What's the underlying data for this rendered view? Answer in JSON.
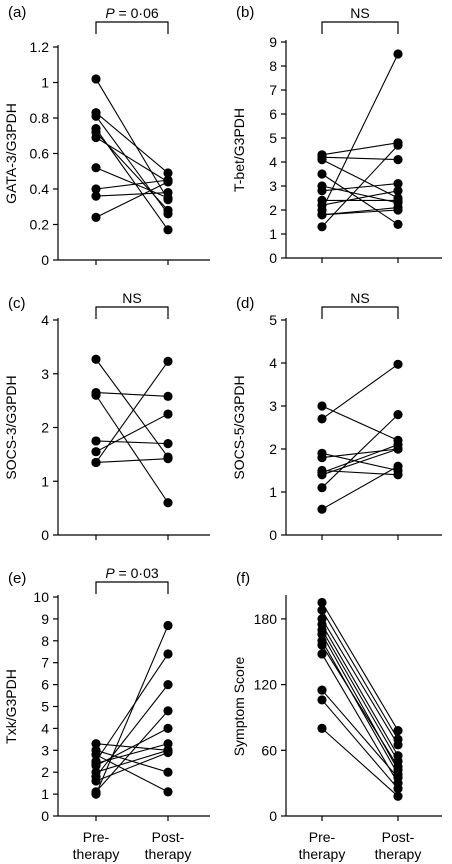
{
  "chart_data": [
    {
      "id": "a",
      "panel_label": "(a)",
      "type": "scatter",
      "paired": true,
      "title": "",
      "significance": "P = 0·06",
      "sig_style": "italic-p",
      "xlabel": "",
      "ylabel": "GATA-3/G3PDH",
      "ylim": [
        0,
        1.2
      ],
      "yticks": [
        "0",
        "0.2",
        "0.4",
        "0.6",
        "0.8",
        "1",
        "1.2"
      ],
      "categories": [
        "",
        ""
      ],
      "pairs": [
        [
          1.02,
          0.34
        ],
        [
          0.83,
          0.49
        ],
        [
          0.81,
          0.26
        ],
        [
          0.74,
          0.17
        ],
        [
          0.72,
          0.28
        ],
        [
          0.69,
          0.44
        ],
        [
          0.52,
          0.35
        ],
        [
          0.4,
          0.45
        ],
        [
          0.36,
          0.38
        ],
        [
          0.24,
          0.44
        ]
      ]
    },
    {
      "id": "b",
      "panel_label": "(b)",
      "type": "scatter",
      "paired": true,
      "title": "",
      "significance": "NS",
      "sig_style": "plain",
      "xlabel": "",
      "ylabel": "T-bet/G3PDH",
      "ylim": [
        0,
        9
      ],
      "yticks": [
        "0",
        "1",
        "2",
        "3",
        "4",
        "5",
        "6",
        "7",
        "8",
        "9"
      ],
      "categories": [
        "",
        ""
      ],
      "pairs": [
        [
          4.3,
          4.8
        ],
        [
          4.2,
          4.1
        ],
        [
          4.1,
          2.5
        ],
        [
          3.5,
          1.4
        ],
        [
          3.0,
          2.3
        ],
        [
          2.8,
          3.1
        ],
        [
          2.4,
          2.4
        ],
        [
          2.2,
          2.8
        ],
        [
          2.0,
          8.5
        ],
        [
          1.8,
          2.0
        ],
        [
          1.8,
          2.1
        ],
        [
          1.3,
          4.7
        ]
      ]
    },
    {
      "id": "c",
      "panel_label": "(c)",
      "type": "scatter",
      "paired": true,
      "title": "",
      "significance": "NS",
      "sig_style": "plain",
      "xlabel": "",
      "ylabel": "SOCS-3/G3PDH",
      "ylim": [
        0,
        4
      ],
      "yticks": [
        "0",
        "1",
        "2",
        "3",
        "4"
      ],
      "categories": [
        "",
        ""
      ],
      "pairs": [
        [
          3.27,
          1.45
        ],
        [
          2.65,
          2.58
        ],
        [
          2.6,
          0.6
        ],
        [
          1.75,
          1.7
        ],
        [
          1.55,
          2.25
        ],
        [
          1.35,
          1.42
        ],
        [
          1.35,
          3.23
        ]
      ]
    },
    {
      "id": "d",
      "panel_label": "(d)",
      "type": "scatter",
      "paired": true,
      "title": "",
      "significance": "NS",
      "sig_style": "plain",
      "xlabel": "",
      "ylabel": "SOCS-5/G3PDH",
      "ylim": [
        0,
        5
      ],
      "yticks": [
        "0",
        "1",
        "2",
        "3",
        "4",
        "5"
      ],
      "categories": [
        "",
        ""
      ],
      "pairs": [
        [
          3.0,
          2.2
        ],
        [
          2.7,
          3.97
        ],
        [
          1.9,
          1.5
        ],
        [
          1.8,
          2.0
        ],
        [
          1.5,
          1.4
        ],
        [
          1.45,
          2.1
        ],
        [
          1.4,
          2.0
        ],
        [
          1.1,
          2.8
        ],
        [
          0.6,
          1.6
        ]
      ]
    },
    {
      "id": "e",
      "panel_label": "(e)",
      "type": "scatter",
      "paired": true,
      "title": "",
      "significance": "P = 0·03",
      "sig_style": "italic-p",
      "xlabel": "",
      "ylabel": "Txk/G3PDH",
      "ylim": [
        0,
        10
      ],
      "yticks": [
        "0",
        "1",
        "2",
        "3",
        "4",
        "5",
        "6",
        "7",
        "8",
        "9",
        "10"
      ],
      "categories": [
        "Pre-therapy",
        "Post-therapy"
      ],
      "pairs": [
        [
          3.3,
          3.0
        ],
        [
          3.0,
          2.0
        ],
        [
          2.8,
          1.1
        ],
        [
          2.5,
          7.4
        ],
        [
          2.4,
          3.3
        ],
        [
          2.3,
          4.0
        ],
        [
          2.0,
          3.0
        ],
        [
          1.8,
          6.0
        ],
        [
          1.6,
          2.9
        ],
        [
          1.1,
          4.8
        ],
        [
          1.0,
          8.7
        ]
      ]
    },
    {
      "id": "f",
      "panel_label": "(f)",
      "type": "scatter",
      "paired": true,
      "title": "",
      "significance": "",
      "sig_style": "none",
      "xlabel": "",
      "ylabel": "Symptom Score",
      "ylim": [
        0,
        200
      ],
      "yticks": [
        "0",
        "60",
        "120",
        "180"
      ],
      "ytick_values": [
        0,
        60,
        120,
        180
      ],
      "categories": [
        "Pre-therapy",
        "Post-therapy"
      ],
      "pairs": [
        [
          195,
          78
        ],
        [
          188,
          70
        ],
        [
          180,
          65
        ],
        [
          175,
          55
        ],
        [
          170,
          50
        ],
        [
          166,
          42
        ],
        [
          160,
          38
        ],
        [
          156,
          45
        ],
        [
          148,
          30
        ],
        [
          115,
          35
        ],
        [
          106,
          25
        ],
        [
          80,
          18
        ]
      ]
    }
  ],
  "xtick_lines": {
    "pre_line1": "Pre-",
    "pre_line2": "therapy",
    "post_line1": "Post-",
    "post_line2": "therapy"
  },
  "colors": {
    "ink": "#000000",
    "background": "#ffffff"
  }
}
